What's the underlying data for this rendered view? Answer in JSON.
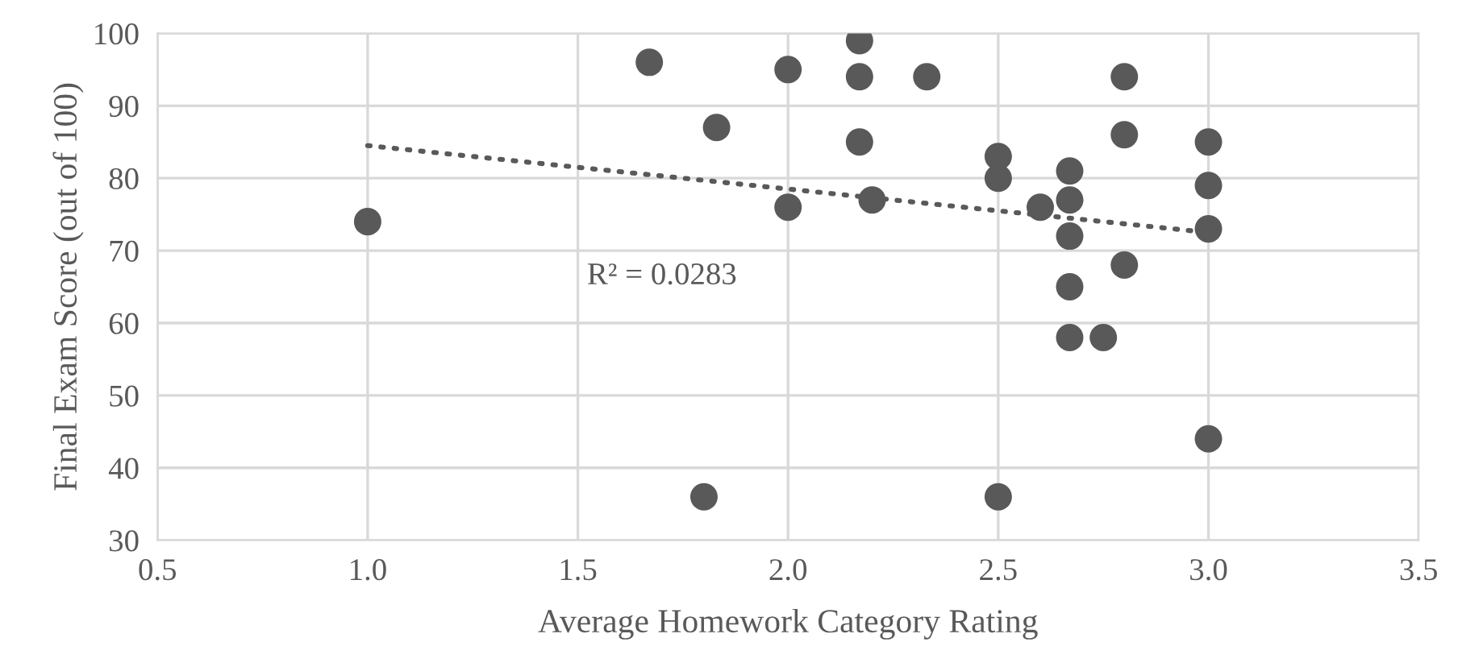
{
  "chart_data": {
    "type": "scatter",
    "xlabel": "Average Homework Category Rating",
    "ylabel": "Final Exam Score (out of 100)",
    "series": [
      {
        "color": "#595959",
        "marker": "circle",
        "x": [
          1.0,
          1.67,
          1.83,
          1.8,
          2.0,
          2.0,
          2.17,
          2.17,
          2.17,
          2.2,
          2.33,
          2.5,
          2.5,
          2.5,
          2.6,
          2.67,
          2.67,
          2.67,
          2.67,
          2.67,
          2.75,
          2.8,
          2.8,
          2.8,
          3.0,
          3.0,
          3.0,
          3.0
        ],
        "values": [
          74,
          96,
          87,
          36,
          95,
          76,
          99,
          94,
          85,
          77,
          94,
          83,
          80,
          36,
          76,
          81,
          77,
          72,
          65,
          58,
          58,
          94,
          86,
          68,
          85,
          79,
          73,
          44
        ]
      },
      {
        "type": "line",
        "color": "#595959",
        "line_style": "dotted",
        "x": [
          1.0,
          3.0
        ],
        "values": [
          84.5,
          72.5
        ]
      }
    ],
    "annotations": [
      "R² = 0.0283"
    ],
    "xlim": [
      0.5,
      3.5
    ],
    "xticks": [
      {
        "value": 0.5,
        "label": "0.5"
      },
      {
        "value": 1.0,
        "label": "1.0"
      },
      {
        "value": 1.5,
        "label": "1.5"
      },
      {
        "value": 2.0,
        "label": "2.0"
      },
      {
        "value": 2.5,
        "label": "2.5"
      },
      {
        "value": 3.0,
        "label": "3.0"
      },
      {
        "value": 3.5,
        "label": "3.5"
      }
    ],
    "ylim": [
      30,
      100
    ],
    "yticks": [
      30,
      40,
      50,
      60,
      70,
      80,
      90,
      100
    ],
    "grid": true
  }
}
